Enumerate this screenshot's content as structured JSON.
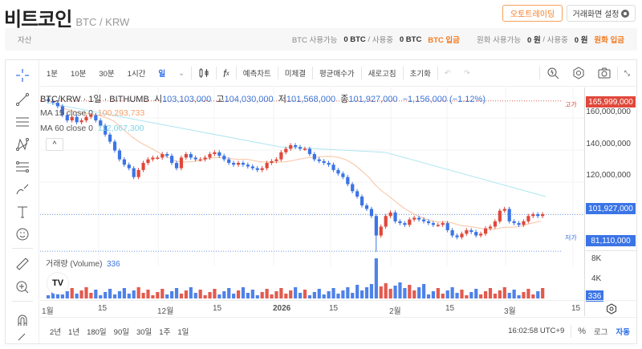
{
  "header": {
    "title": "비트코인",
    "pair": "BTC / KRW"
  },
  "buttons": {
    "autotrade": "오토트레이딩",
    "settings": "거래화면 설정"
  },
  "asset_bar": {
    "label": "자산",
    "btc_available_label": "BTC 사용가능",
    "btc_available": "0 BTC",
    "sep": "/",
    "in_use_label": "사용중",
    "btc_in_use": "0 BTC",
    "btc_deposit": "BTC 입금",
    "krw_available_label": "원화 사용가능",
    "krw_available": "0 원",
    "krw_in_use": "0 원",
    "krw_deposit": "원화 입금"
  },
  "toolbar": {
    "intervals": [
      "1분",
      "10분",
      "30분",
      "1시간",
      "일"
    ],
    "active_interval": "일",
    "items": [
      "예측차트",
      "미체결",
      "평균매수가",
      "새로고침",
      "초기화"
    ]
  },
  "legend": {
    "symbol": "BTC/KRW · 1일 · BITHUMB",
    "open_label": "시",
    "open": "103,103,000",
    "high_label": "고",
    "high": "104,030,000",
    "low_label": "저",
    "low": "101,568,000",
    "close_label": "종",
    "close": "101,927,000",
    "change": "−1,156,000 (−1.12%)"
  },
  "ma": [
    {
      "label": "MA 15 close 0",
      "value": "100,293,733",
      "color": "#f5a06a"
    },
    {
      "label": "MA 60 close 0",
      "value": "112,067,300",
      "color": "#7fd3e8"
    }
  ],
  "price_axis": {
    "labels": [
      "160,000,000",
      "140,000,000",
      "120,000,000"
    ],
    "high_tag": "165,999,000",
    "high_label": "고가",
    "last_tag": "101,927,000",
    "low_tag": "81,110,000",
    "low_label": "저가"
  },
  "volume": {
    "label": "거래량 (Volume)",
    "value": "336",
    "axis": [
      "8K",
      "4K"
    ],
    "tag": "336"
  },
  "time_axis": [
    "1월",
    "15",
    "12월",
    "15",
    "2026",
    "15",
    "2월",
    "15",
    "3월",
    "15"
  ],
  "ranges": [
    "2년",
    "1년",
    "180일",
    "90일",
    "30일",
    "1주",
    "1일"
  ],
  "footer": {
    "time": "16:02:58 UTC+9",
    "percent": "%",
    "log": "로그",
    "auto": "자동"
  },
  "colors": {
    "up": "#e0483b",
    "down": "#3b74e6",
    "accent": "#f47b20",
    "blue": "#2a6ee8"
  },
  "chart_data": {
    "type": "candlestick",
    "title": "BTC/KRW · 1일 · BITHUMB",
    "ylim": [
      78000000,
      170000000
    ],
    "closes": [
      166,
      165,
      163,
      158,
      155,
      157,
      154,
      155,
      157,
      158,
      155,
      152,
      147,
      143,
      138,
      133,
      130,
      128,
      123,
      127,
      131,
      133,
      134,
      134,
      136,
      135,
      131,
      128,
      134,
      136,
      134,
      133,
      133,
      134,
      136,
      137,
      135,
      133,
      131,
      130,
      131,
      130,
      129,
      128,
      127,
      128,
      131,
      132,
      133,
      137,
      139,
      141,
      140,
      139,
      139,
      136,
      133,
      132,
      131,
      130,
      127,
      125,
      123,
      119,
      115,
      112,
      107,
      105,
      101,
      90,
      95,
      101,
      103,
      98,
      97,
      96,
      99,
      100,
      99,
      98,
      97,
      96,
      96,
      97,
      93,
      90,
      89,
      91,
      93,
      92,
      90,
      91,
      94,
      95,
      98,
      104,
      105,
      98,
      97,
      96,
      98,
      101,
      102,
      101,
      102
    ]
  }
}
